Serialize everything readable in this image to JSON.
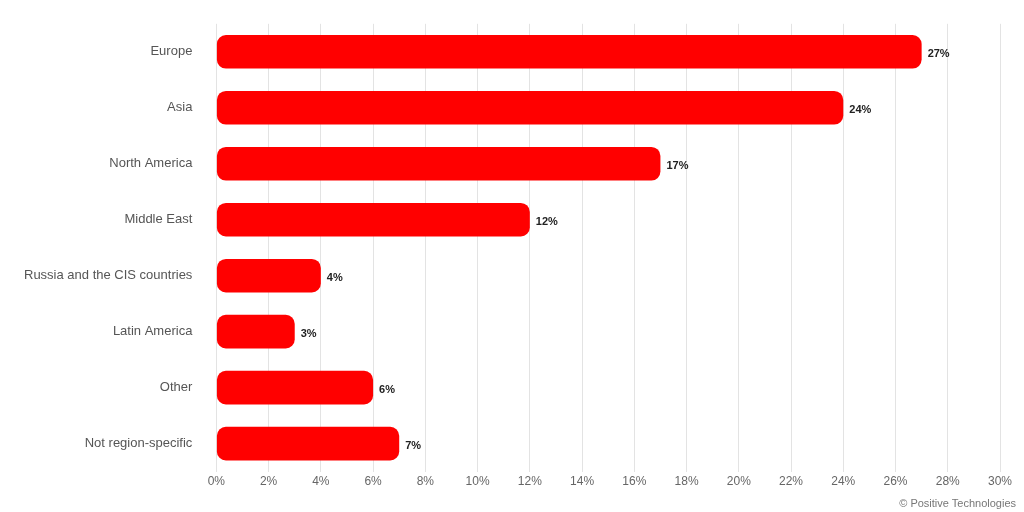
{
  "chart_data": {
    "type": "bar",
    "orientation": "horizontal",
    "categories": [
      "Europe",
      "Asia",
      "North America",
      "Middle East",
      "Russia and the CIS countries",
      "Latin America",
      "Other",
      "Not region-specific"
    ],
    "values": [
      27,
      24,
      17,
      12,
      4,
      3,
      6,
      7
    ],
    "value_labels": [
      "27%",
      "24%",
      "17%",
      "12%",
      "4%",
      "3%",
      "6%",
      "7%"
    ],
    "data_labels": true,
    "color": "#ff0000",
    "xlim": [
      0,
      30
    ],
    "xticks": [
      {
        "value": 0,
        "label": "0%"
      },
      {
        "value": 2,
        "label": "2%"
      },
      {
        "value": 4,
        "label": "4%"
      },
      {
        "value": 6,
        "label": "6%"
      },
      {
        "value": 8,
        "label": "8%"
      },
      {
        "value": 10,
        "label": "10%"
      },
      {
        "value": 12,
        "label": "12%"
      },
      {
        "value": 14,
        "label": "14%"
      },
      {
        "value": 16,
        "label": "16%"
      },
      {
        "value": 18,
        "label": "18%"
      },
      {
        "value": 20,
        "label": "20%"
      },
      {
        "value": 22,
        "label": "22%"
      },
      {
        "value": 24,
        "label": "24%"
      },
      {
        "value": 26,
        "label": "26%"
      },
      {
        "value": 28,
        "label": "28%"
      },
      {
        "value": 30,
        "label": "30%"
      }
    ],
    "grid": true,
    "annotations": [
      "© Positive Technologies"
    ]
  }
}
